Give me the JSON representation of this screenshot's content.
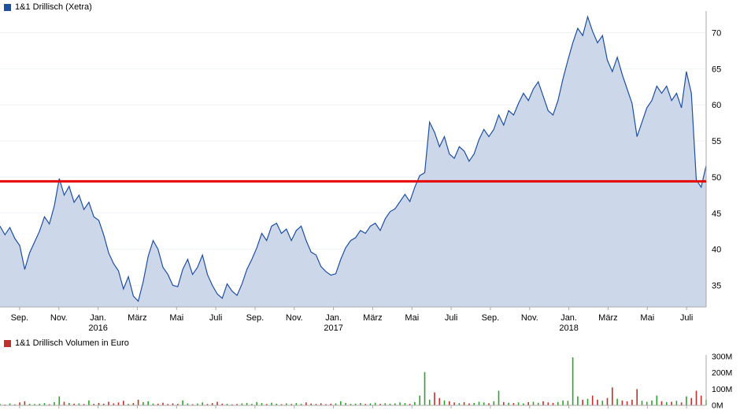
{
  "chart_data": [
    {
      "type": "area",
      "title": "1&1 Drillisch (Xetra)",
      "line_color": "#1f4f9f",
      "fill_color": "#ccd7ea",
      "legend_color": "#1f4f9f",
      "axis_color": "#aaaaaa",
      "grid_color": "#eff2f7",
      "reference_line": {
        "value": 49.4,
        "color": "#e60000"
      },
      "ylim": [
        32,
        73
      ],
      "y_ticks": [
        35,
        40,
        45,
        50,
        55,
        60,
        65,
        70
      ],
      "months_total": 36,
      "x_ticks": [
        {
          "label": "Sep.",
          "month": 1
        },
        {
          "label": "Nov.",
          "month": 3
        },
        {
          "label": "Jan.",
          "month": 5
        },
        {
          "label": "März",
          "month": 7
        },
        {
          "label": "Mai",
          "month": 9
        },
        {
          "label": "Juli",
          "month": 11
        },
        {
          "label": "Sep.",
          "month": 13
        },
        {
          "label": "Nov.",
          "month": 15
        },
        {
          "label": "Jan.",
          "month": 17
        },
        {
          "label": "März",
          "month": 19
        },
        {
          "label": "Mai",
          "month": 21
        },
        {
          "label": "Juli",
          "month": 23
        },
        {
          "label": "Sep.",
          "month": 25
        },
        {
          "label": "Nov.",
          "month": 27
        },
        {
          "label": "Jan.",
          "month": 29
        },
        {
          "label": "März",
          "month": 31
        },
        {
          "label": "Mai",
          "month": 33
        },
        {
          "label": "Juli",
          "month": 35
        }
      ],
      "year_ticks": [
        {
          "label": "2016",
          "month": 5
        },
        {
          "label": "2017",
          "month": 17
        },
        {
          "label": "2018",
          "month": 29
        }
      ],
      "values": [
        43.2,
        42.0,
        43.0,
        41.5,
        40.5,
        37.2,
        39.5,
        41.0,
        42.5,
        44.5,
        43.5,
        46.0,
        49.8,
        47.5,
        48.7,
        46.5,
        47.5,
        45.5,
        46.5,
        44.5,
        44.0,
        42.0,
        39.5,
        38.0,
        37.0,
        34.5,
        36.2,
        33.5,
        32.8,
        35.5,
        39.0,
        41.2,
        40.0,
        37.5,
        36.5,
        35.0,
        34.8,
        37.2,
        38.6,
        36.5,
        37.5,
        39.2,
        36.5,
        35.0,
        33.8,
        33.2,
        35.2,
        34.2,
        33.6,
        35.2,
        37.2,
        38.6,
        40.2,
        42.2,
        41.2,
        43.2,
        43.6,
        42.2,
        42.8,
        41.2,
        42.6,
        43.2,
        41.2,
        39.6,
        39.2,
        37.6,
        36.9,
        36.4,
        36.6,
        38.6,
        40.2,
        41.2,
        41.6,
        42.6,
        42.2,
        43.2,
        43.6,
        42.6,
        44.2,
        45.2,
        45.6,
        46.6,
        47.6,
        46.6,
        48.6,
        50.2,
        50.6,
        57.6,
        56.2,
        54.2,
        55.6,
        53.2,
        52.6,
        54.2,
        53.6,
        52.2,
        53.2,
        55.2,
        56.6,
        55.6,
        56.6,
        58.6,
        57.2,
        59.2,
        58.6,
        60.2,
        61.6,
        60.6,
        62.2,
        63.2,
        61.2,
        59.2,
        58.6,
        60.6,
        63.6,
        66.2,
        68.6,
        70.6,
        69.6,
        72.2,
        70.2,
        68.6,
        69.6,
        66.2,
        64.6,
        66.6,
        64.2,
        62.2,
        60.2,
        55.6,
        57.6,
        59.6,
        60.6,
        62.6,
        61.6,
        62.6,
        60.6,
        61.6,
        59.6,
        64.6,
        61.6,
        49.6,
        48.6,
        51.6
      ]
    },
    {
      "type": "bar",
      "title": "1&1 Drillisch Volumen in Euro",
      "legend_color": "#c0302c",
      "up_color": "#2fa12f",
      "down_color": "#c0302c",
      "axis_color": "#aaaaaa",
      "ylim": [
        0,
        310
      ],
      "y_tick_values": [
        300,
        200,
        100,
        0
      ],
      "y_tick_labels": [
        "300M",
        "200M",
        "100M",
        "0M"
      ],
      "values": [
        8,
        5,
        12,
        6,
        18,
        25,
        10,
        8,
        9,
        14,
        7,
        20,
        55,
        22,
        15,
        10,
        12,
        8,
        30,
        9,
        15,
        10,
        22,
        12,
        18,
        28,
        9,
        14,
        35,
        20,
        25,
        11,
        10,
        16,
        8,
        12,
        9,
        30,
        12,
        7,
        11,
        18,
        8,
        14,
        22,
        10,
        9,
        6,
        8,
        12,
        15,
        9,
        20,
        14,
        8,
        16,
        10,
        7,
        12,
        8,
        14,
        9,
        18,
        11,
        8,
        13,
        7,
        10,
        12,
        25,
        15,
        9,
        10,
        14,
        8,
        12,
        16,
        9,
        13,
        10,
        12,
        18,
        14,
        9,
        20,
        60,
        205,
        35,
        80,
        45,
        30,
        25,
        18,
        14,
        20,
        12,
        15,
        22,
        18,
        13,
        25,
        90,
        20,
        16,
        14,
        18,
        12,
        20,
        22,
        16,
        25,
        18,
        15,
        20,
        30,
        28,
        295,
        55,
        35,
        40,
        60,
        35,
        28,
        45,
        110,
        40,
        30,
        25,
        35,
        100,
        28,
        22,
        30,
        60,
        25,
        20,
        22,
        28,
        18,
        55,
        45,
        90,
        60,
        35
      ]
    }
  ]
}
